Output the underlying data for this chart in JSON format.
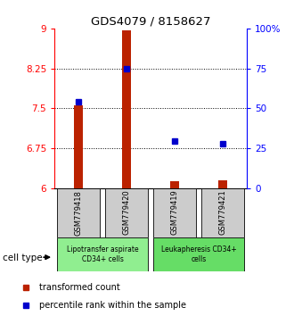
{
  "title": "GDS4079 / 8158627",
  "samples": [
    "GSM779418",
    "GSM779420",
    "GSM779419",
    "GSM779421"
  ],
  "red_values": [
    7.56,
    8.96,
    6.12,
    6.14
  ],
  "blue_values": [
    7.62,
    8.25,
    6.88,
    6.84
  ],
  "ylim_left": [
    6,
    9
  ],
  "ylim_right": [
    0,
    100
  ],
  "yticks_left": [
    6,
    6.75,
    7.5,
    8.25,
    9
  ],
  "yticks_right": [
    0,
    25,
    50,
    75,
    100
  ],
  "ytick_labels_left": [
    "6",
    "6.75",
    "7.5",
    "8.25",
    "9"
  ],
  "ytick_labels_right": [
    "0",
    "25",
    "50",
    "75",
    "100%"
  ],
  "group1_label": "Lipotransfer aspirate\nCD34+ cells",
  "group2_label": "Leukapheresis CD34+\ncells",
  "group1_color": "#90ee90",
  "group2_color": "#66dd66",
  "cell_type_label": "cell type",
  "legend_red": "transformed count",
  "legend_blue": "percentile rank within the sample",
  "bar_color": "#bb2200",
  "dot_color": "#0000cc",
  "background_label": "#cccccc",
  "x_positions": [
    1,
    2,
    3,
    4
  ],
  "bar_width": 0.18
}
